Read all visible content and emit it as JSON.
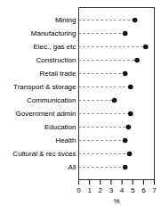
{
  "chart_data": {
    "type": "lollipop",
    "orientation": "horizontal",
    "categories": [
      "Mining",
      "Manufacturing",
      "Elec., gas etc",
      "Construction",
      "Retail trade",
      "Transport & storage",
      "Communication",
      "Government admin",
      "Education",
      "Health",
      "Cultural & rec svces",
      "All"
    ],
    "values": [
      5.2,
      4.3,
      6.2,
      5.4,
      4.3,
      4.8,
      3.3,
      4.8,
      4.6,
      4.3,
      4.7,
      4.3
    ],
    "xlabel": "%",
    "xlim": [
      0,
      7
    ],
    "xticks": [
      0,
      1,
      2,
      3,
      4,
      5,
      6,
      7
    ],
    "color": "#111111",
    "line_style": "dashed",
    "grid": false
  }
}
